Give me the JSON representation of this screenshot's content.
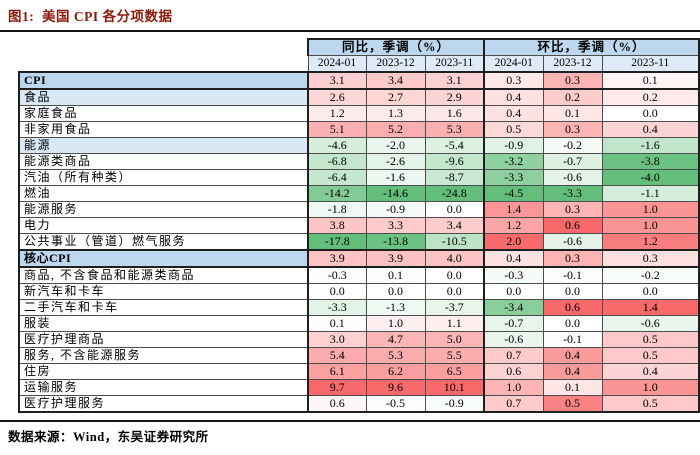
{
  "title": "图1:  美国 CPI 各分项数据",
  "source_note": "数据来源：Wind，东吴证券研究所",
  "table": {
    "col_groups": [
      {
        "label": "同比，季调（%）"
      },
      {
        "label": "环比，季调（%）"
      }
    ],
    "date_headers": [
      "2024-01",
      "2023-12",
      "2023-11",
      "2024-01",
      "2023-12",
      "2023-11"
    ],
    "rows": [
      {
        "label": "CPI",
        "style": "primary",
        "yoy": [
          3.1,
          3.4,
          3.1
        ],
        "mom": [
          0.3,
          0.3,
          0.1
        ]
      },
      {
        "label": "食品",
        "style": "category",
        "yoy": [
          2.6,
          2.7,
          2.9
        ],
        "mom": [
          0.4,
          0.2,
          0.2
        ]
      },
      {
        "label": "家庭食品",
        "style": "item",
        "yoy": [
          1.2,
          1.3,
          1.6
        ],
        "mom": [
          0.4,
          0.1,
          0.0
        ]
      },
      {
        "label": "非家用食品",
        "style": "item",
        "yoy": [
          5.1,
          5.2,
          5.3
        ],
        "mom": [
          0.5,
          0.3,
          0.4
        ]
      },
      {
        "label": "能源",
        "style": "category",
        "yoy": [
          -4.6,
          -2.0,
          -5.4
        ],
        "mom": [
          -0.9,
          -0.2,
          -1.6
        ]
      },
      {
        "label": "能源类商品",
        "style": "item",
        "yoy": [
          -6.8,
          -2.6,
          -9.6
        ],
        "mom": [
          -3.2,
          -0.7,
          -3.8
        ]
      },
      {
        "label": "汽油（所有种类）",
        "style": "item",
        "yoy": [
          -6.4,
          -1.6,
          -8.7
        ],
        "mom": [
          -3.3,
          -0.6,
          -4.0
        ]
      },
      {
        "label": "燃油",
        "style": "item",
        "yoy": [
          -14.2,
          -14.6,
          -24.8
        ],
        "mom": [
          -4.5,
          -3.3,
          -1.1
        ]
      },
      {
        "label": "能源服务",
        "style": "item",
        "yoy": [
          -1.8,
          -0.9,
          0.0
        ],
        "mom": [
          1.4,
          0.3,
          1.0
        ]
      },
      {
        "label": "电力",
        "style": "item",
        "yoy": [
          3.8,
          3.3,
          3.4
        ],
        "mom": [
          1.2,
          0.6,
          1.0
        ]
      },
      {
        "label": "公共事业（管道）燃气服务",
        "style": "item",
        "yoy": [
          -17.8,
          -13.8,
          -10.5
        ],
        "mom": [
          2.0,
          -0.6,
          1.2
        ]
      },
      {
        "label": "核心CPI",
        "style": "primary",
        "yoy": [
          3.9,
          3.9,
          4.0
        ],
        "mom": [
          0.4,
          0.3,
          0.3
        ]
      },
      {
        "label": "商品, 不含食品和能源类商品",
        "style": "item",
        "yoy": [
          -0.3,
          0.1,
          0.0
        ],
        "mom": [
          -0.3,
          -0.1,
          -0.2
        ]
      },
      {
        "label": "新汽车和卡车",
        "style": "item",
        "yoy": [
          0.0,
          0.0,
          0.0
        ],
        "mom": [
          0.0,
          0.0,
          0.0
        ]
      },
      {
        "label": "二手汽车和卡车",
        "style": "item",
        "yoy": [
          -3.3,
          -1.3,
          -3.7
        ],
        "mom": [
          -3.4,
          0.6,
          1.4
        ]
      },
      {
        "label": "服装",
        "style": "item",
        "yoy": [
          0.1,
          1.0,
          1.1
        ],
        "mom": [
          -0.7,
          0.0,
          -0.6
        ]
      },
      {
        "label": "医疗护理商品",
        "style": "item",
        "yoy": [
          3.0,
          4.7,
          5.0
        ],
        "mom": [
          -0.6,
          -0.1,
          0.5
        ]
      },
      {
        "label": "服务, 不含能源服务",
        "style": "item",
        "yoy": [
          5.4,
          5.3,
          5.5
        ],
        "mom": [
          0.7,
          0.4,
          0.5
        ]
      },
      {
        "label": "住房",
        "style": "item",
        "yoy": [
          6.1,
          6.2,
          6.5
        ],
        "mom": [
          0.6,
          0.4,
          0.4
        ]
      },
      {
        "label": "运输服务",
        "style": "item",
        "yoy": [
          9.7,
          9.6,
          10.1
        ],
        "mom": [
          1.0,
          0.1,
          1.0
        ]
      },
      {
        "label": "医疗护理服务",
        "style": "item",
        "yoy": [
          0.6,
          -0.5,
          -0.9
        ],
        "mom": [
          0.7,
          0.5,
          0.5
        ]
      }
    ]
  },
  "colors": {
    "title": "#8C1A0A",
    "rule": "#15171C",
    "group_header_bg": "#BDD7EE",
    "date_header_bg": "#DEEBF7",
    "primary_row_bg": "#BDD7EE",
    "category_row_bg": "#D9E8F5",
    "scale_positive_max": "#F8696B",
    "scale_negative_max": "#63BE7B",
    "scale_zero": "#FFFFFF"
  }
}
